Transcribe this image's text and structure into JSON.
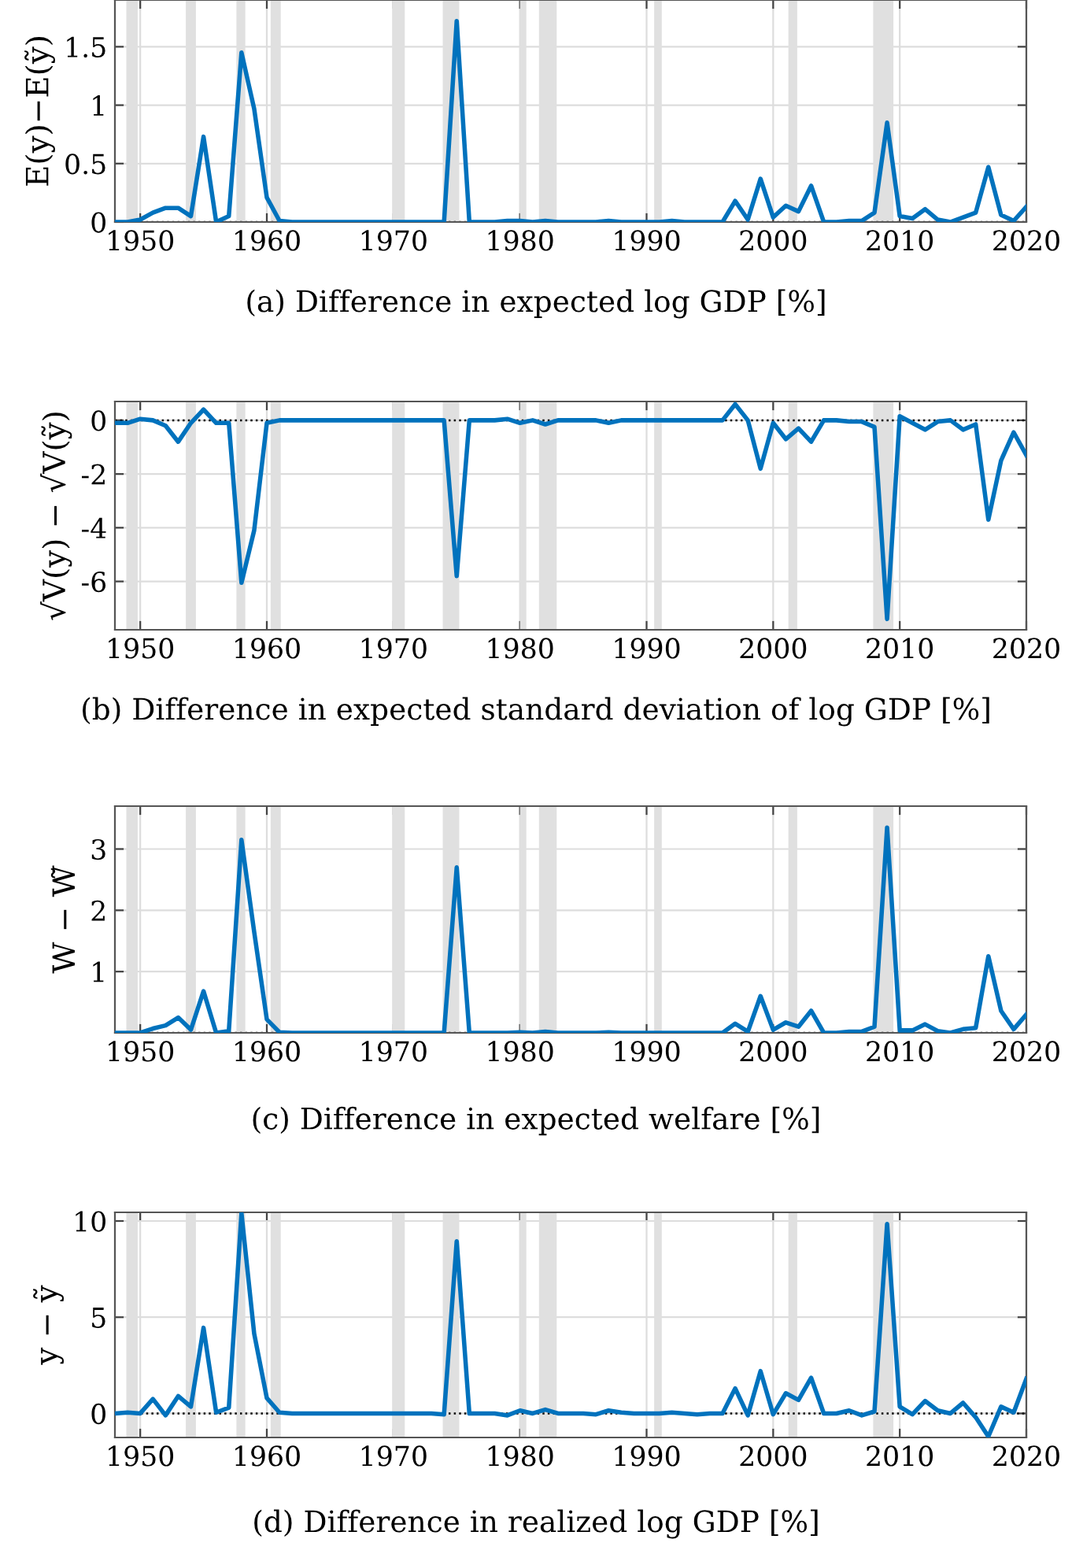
{
  "chart_data": [
    {
      "type": "line",
      "title": "(a) Difference in expected log GDP [%]",
      "ylabel": "E(y)−E(ỹ)",
      "x": [
        1948,
        1949,
        1950,
        1951,
        1952,
        1953,
        1954,
        1955,
        1956,
        1957,
        1958,
        1959,
        1960,
        1961,
        1962,
        1963,
        1964,
        1965,
        1966,
        1967,
        1968,
        1969,
        1970,
        1971,
        1972,
        1973,
        1974,
        1975,
        1976,
        1977,
        1978,
        1979,
        1980,
        1981,
        1982,
        1983,
        1984,
        1985,
        1986,
        1987,
        1988,
        1989,
        1990,
        1991,
        1992,
        1993,
        1994,
        1995,
        1996,
        1997,
        1998,
        1999,
        2000,
        2001,
        2002,
        2003,
        2004,
        2005,
        2006,
        2007,
        2008,
        2009,
        2010,
        2011,
        2012,
        2013,
        2014,
        2015,
        2016,
        2017,
        2018,
        2019,
        2020
      ],
      "series": [
        {
          "color": "#0072bd",
          "values": [
            0,
            0,
            0.02,
            0.08,
            0.12,
            0.12,
            0.05,
            0.73,
            0,
            0.05,
            1.45,
            0.97,
            0.21,
            0.01,
            0,
            0,
            0,
            0,
            0,
            0,
            0,
            0,
            0,
            0,
            0,
            0,
            0,
            1.72,
            0,
            0,
            0,
            0.01,
            0.01,
            0,
            0.01,
            0,
            0,
            0,
            0,
            0.01,
            0,
            0,
            0,
            0,
            0.01,
            0,
            0,
            0,
            0,
            0.18,
            0.02,
            0.37,
            0.04,
            0.14,
            0.09,
            0.31,
            0,
            0,
            0.01,
            0.01,
            0.08,
            0.85,
            0.05,
            0.03,
            0.11,
            0.02,
            0,
            0.04,
            0.08,
            0.47,
            0.06,
            0.01,
            0.13
          ]
        }
      ],
      "xlim": [
        1948,
        2020
      ],
      "ylim": [
        0,
        1.9
      ],
      "xticks": [
        1950,
        1960,
        1970,
        1980,
        1990,
        2000,
        2010,
        2020
      ],
      "yticks": [
        0,
        0.5,
        1,
        1.5
      ],
      "grid": true,
      "bands": [
        {
          "axis": "x",
          "from": 1948.9,
          "to": 1949.8,
          "color": "#e0e0e0"
        },
        {
          "axis": "x",
          "from": 1953.6,
          "to": 1954.4,
          "color": "#e0e0e0"
        },
        {
          "axis": "x",
          "from": 1957.6,
          "to": 1958.3,
          "color": "#e0e0e0"
        },
        {
          "axis": "x",
          "from": 1960.3,
          "to": 1961.1,
          "color": "#e0e0e0"
        },
        {
          "axis": "x",
          "from": 1969.9,
          "to": 1970.9,
          "color": "#e0e0e0"
        },
        {
          "axis": "x",
          "from": 1973.9,
          "to": 1975.2,
          "color": "#e0e0e0"
        },
        {
          "axis": "x",
          "from": 1980.0,
          "to": 1980.5,
          "color": "#e0e0e0"
        },
        {
          "axis": "x",
          "from": 1981.5,
          "to": 1982.9,
          "color": "#e0e0e0"
        },
        {
          "axis": "x",
          "from": 1990.6,
          "to": 1991.2,
          "color": "#e0e0e0"
        },
        {
          "axis": "x",
          "from": 2001.2,
          "to": 2001.9,
          "color": "#e0e0e0"
        },
        {
          "axis": "x",
          "from": 2007.9,
          "to": 2009.5,
          "color": "#e0e0e0"
        }
      ],
      "ref_lines": [
        {
          "axis": "y",
          "value": 0,
          "color": "#000000",
          "line_style": "dotted"
        }
      ]
    },
    {
      "type": "line",
      "title": "(b) Difference in expected standard deviation of log GDP [%]",
      "ylabel": "√V(y) − √V(ỹ)",
      "x": [
        1948,
        1949,
        1950,
        1951,
        1952,
        1953,
        1954,
        1955,
        1956,
        1957,
        1958,
        1959,
        1960,
        1961,
        1962,
        1963,
        1964,
        1965,
        1966,
        1967,
        1968,
        1969,
        1970,
        1971,
        1972,
        1973,
        1974,
        1975,
        1976,
        1977,
        1978,
        1979,
        1980,
        1981,
        1982,
        1983,
        1984,
        1985,
        1986,
        1987,
        1988,
        1989,
        1990,
        1991,
        1992,
        1993,
        1994,
        1995,
        1996,
        1997,
        1998,
        1999,
        2000,
        2001,
        2002,
        2003,
        2004,
        2005,
        2006,
        2007,
        2008,
        2009,
        2010,
        2011,
        2012,
        2013,
        2014,
        2015,
        2016,
        2017,
        2018,
        2019,
        2020
      ],
      "series": [
        {
          "color": "#0072bd",
          "values": [
            -0.1,
            -0.1,
            0.05,
            0,
            -0.2,
            -0.8,
            -0.1,
            0.4,
            -0.1,
            -0.1,
            -6.05,
            -4.1,
            -0.1,
            0,
            0,
            0,
            0,
            0,
            0,
            0,
            0,
            0,
            0,
            0,
            0,
            0,
            0,
            -5.8,
            0,
            0,
            0,
            0.05,
            -0.1,
            0,
            -0.15,
            0,
            0,
            0,
            0,
            -0.1,
            0,
            0,
            0,
            0,
            0,
            0,
            0,
            0,
            0,
            0.6,
            0,
            -1.8,
            -0.1,
            -0.7,
            -0.3,
            -0.8,
            0,
            0,
            -0.05,
            -0.05,
            -0.25,
            -7.4,
            0.15,
            -0.1,
            -0.35,
            -0.05,
            0,
            -0.35,
            -0.15,
            -3.7,
            -1.5,
            -0.45,
            -1.3
          ]
        }
      ],
      "xlim": [
        1948,
        2020
      ],
      "ylim": [
        -7.8,
        0.7
      ],
      "xticks": [
        1950,
        1960,
        1970,
        1980,
        1990,
        2000,
        2010,
        2020
      ],
      "yticks": [
        {
          "value": -6,
          "label": "-6"
        },
        {
          "value": -4,
          "label": "-4"
        },
        {
          "value": -2,
          "label": "-2"
        },
        0
      ],
      "grid": true,
      "bands": [
        {
          "axis": "x",
          "from": 1948.9,
          "to": 1949.8,
          "color": "#e0e0e0"
        },
        {
          "axis": "x",
          "from": 1953.6,
          "to": 1954.4,
          "color": "#e0e0e0"
        },
        {
          "axis": "x",
          "from": 1957.6,
          "to": 1958.3,
          "color": "#e0e0e0"
        },
        {
          "axis": "x",
          "from": 1960.3,
          "to": 1961.1,
          "color": "#e0e0e0"
        },
        {
          "axis": "x",
          "from": 1969.9,
          "to": 1970.9,
          "color": "#e0e0e0"
        },
        {
          "axis": "x",
          "from": 1973.9,
          "to": 1975.2,
          "color": "#e0e0e0"
        },
        {
          "axis": "x",
          "from": 1980.0,
          "to": 1980.5,
          "color": "#e0e0e0"
        },
        {
          "axis": "x",
          "from": 1981.5,
          "to": 1982.9,
          "color": "#e0e0e0"
        },
        {
          "axis": "x",
          "from": 1990.6,
          "to": 1991.2,
          "color": "#e0e0e0"
        },
        {
          "axis": "x",
          "from": 2001.2,
          "to": 2001.9,
          "color": "#e0e0e0"
        },
        {
          "axis": "x",
          "from": 2007.9,
          "to": 2009.5,
          "color": "#e0e0e0"
        }
      ],
      "ref_lines": [
        {
          "axis": "y",
          "value": 0,
          "color": "#000000",
          "line_style": "dotted"
        }
      ]
    },
    {
      "type": "line",
      "title": "(c) Difference in expected welfare [%]",
      "ylabel": "W − W̃",
      "x": [
        1948,
        1949,
        1950,
        1951,
        1952,
        1953,
        1954,
        1955,
        1956,
        1957,
        1958,
        1959,
        1960,
        1961,
        1962,
        1963,
        1964,
        1965,
        1966,
        1967,
        1968,
        1969,
        1970,
        1971,
        1972,
        1973,
        1974,
        1975,
        1976,
        1977,
        1978,
        1979,
        1980,
        1981,
        1982,
        1983,
        1984,
        1985,
        1986,
        1987,
        1988,
        1989,
        1990,
        1991,
        1992,
        1993,
        1994,
        1995,
        1996,
        1997,
        1998,
        1999,
        2000,
        2001,
        2002,
        2003,
        2004,
        2005,
        2006,
        2007,
        2008,
        2009,
        2010,
        2011,
        2012,
        2013,
        2014,
        2015,
        2016,
        2017,
        2018,
        2019,
        2020
      ],
      "series": [
        {
          "color": "#0072bd",
          "values": [
            0,
            0,
            0,
            0.07,
            0.12,
            0.25,
            0.05,
            0.68,
            0,
            0.03,
            3.15,
            1.65,
            0.22,
            0.01,
            0,
            0,
            0,
            0,
            0,
            0,
            0,
            0,
            0,
            0,
            0,
            0,
            0,
            2.7,
            0,
            0,
            0,
            0,
            0.01,
            0,
            0.02,
            0,
            0,
            0,
            0,
            0.01,
            0,
            0,
            0,
            0,
            0,
            0,
            0,
            0,
            0,
            0.15,
            0.02,
            0.6,
            0.05,
            0.17,
            0.1,
            0.36,
            0,
            0,
            0.02,
            0.02,
            0.1,
            3.35,
            0.04,
            0.04,
            0.14,
            0.03,
            0,
            0.06,
            0.08,
            1.25,
            0.36,
            0.06,
            0.3
          ]
        }
      ],
      "xlim": [
        1948,
        2020
      ],
      "ylim": [
        0,
        3.7
      ],
      "xticks": [
        1950,
        1960,
        1970,
        1980,
        1990,
        2000,
        2010,
        2020
      ],
      "yticks": [
        1,
        2,
        3
      ],
      "grid": true,
      "bands": [
        {
          "axis": "x",
          "from": 1948.9,
          "to": 1949.8,
          "color": "#e0e0e0"
        },
        {
          "axis": "x",
          "from": 1953.6,
          "to": 1954.4,
          "color": "#e0e0e0"
        },
        {
          "axis": "x",
          "from": 1957.6,
          "to": 1958.3,
          "color": "#e0e0e0"
        },
        {
          "axis": "x",
          "from": 1960.3,
          "to": 1961.1,
          "color": "#e0e0e0"
        },
        {
          "axis": "x",
          "from": 1969.9,
          "to": 1970.9,
          "color": "#e0e0e0"
        },
        {
          "axis": "x",
          "from": 1973.9,
          "to": 1975.2,
          "color": "#e0e0e0"
        },
        {
          "axis": "x",
          "from": 1980.0,
          "to": 1980.5,
          "color": "#e0e0e0"
        },
        {
          "axis": "x",
          "from": 1981.5,
          "to": 1982.9,
          "color": "#e0e0e0"
        },
        {
          "axis": "x",
          "from": 1990.6,
          "to": 1991.2,
          "color": "#e0e0e0"
        },
        {
          "axis": "x",
          "from": 2001.2,
          "to": 2001.9,
          "color": "#e0e0e0"
        },
        {
          "axis": "x",
          "from": 2007.9,
          "to": 2009.5,
          "color": "#e0e0e0"
        }
      ],
      "ref_lines": [
        {
          "axis": "y",
          "value": 0,
          "color": "#000000",
          "line_style": "dotted"
        }
      ]
    },
    {
      "type": "line",
      "title": "(d) Difference in realized log GDP [%]",
      "ylabel": "y − ỹ",
      "x": [
        1948,
        1949,
        1950,
        1951,
        1952,
        1953,
        1954,
        1955,
        1956,
        1957,
        1958,
        1959,
        1960,
        1961,
        1962,
        1963,
        1964,
        1965,
        1966,
        1967,
        1968,
        1969,
        1970,
        1971,
        1972,
        1973,
        1974,
        1975,
        1976,
        1977,
        1978,
        1979,
        1980,
        1981,
        1982,
        1983,
        1984,
        1985,
        1986,
        1987,
        1988,
        1989,
        1990,
        1991,
        1992,
        1993,
        1994,
        1995,
        1996,
        1997,
        1998,
        1999,
        2000,
        2001,
        2002,
        2003,
        2004,
        2005,
        2006,
        2007,
        2008,
        2009,
        2010,
        2011,
        2012,
        2013,
        2014,
        2015,
        2016,
        2017,
        2018,
        2019,
        2020
      ],
      "series": [
        {
          "color": "#0072bd",
          "values": [
            0,
            0.05,
            0,
            0.75,
            -0.1,
            0.9,
            0.35,
            4.45,
            0.05,
            0.3,
            10.4,
            4.15,
            0.8,
            0.05,
            0,
            0,
            0,
            0,
            0,
            0,
            0,
            0,
            0,
            0,
            0,
            0,
            -0.05,
            8.95,
            0,
            0,
            0,
            -0.1,
            0.15,
            0,
            0.2,
            0,
            0,
            0,
            -0.05,
            0.15,
            0.05,
            0,
            0,
            0,
            0.05,
            0,
            -0.05,
            0,
            0,
            1.3,
            -0.1,
            2.2,
            -0.05,
            1.05,
            0.7,
            1.85,
            0,
            0,
            0.15,
            -0.1,
            0.1,
            9.85,
            0.35,
            -0.05,
            0.65,
            0.15,
            0,
            0.55,
            -0.2,
            -1.2,
            0.35,
            0.05,
            1.8
          ]
        }
      ],
      "xlim": [
        1948,
        2020
      ],
      "ylim": [
        -1.25,
        10.45
      ],
      "xticks": [
        1950,
        1960,
        1970,
        1980,
        1990,
        2000,
        2010,
        2020
      ],
      "yticks": [
        0,
        5,
        10
      ],
      "grid": true,
      "bands": [
        {
          "axis": "x",
          "from": 1948.9,
          "to": 1949.8,
          "color": "#e0e0e0"
        },
        {
          "axis": "x",
          "from": 1953.6,
          "to": 1954.4,
          "color": "#e0e0e0"
        },
        {
          "axis": "x",
          "from": 1957.6,
          "to": 1958.3,
          "color": "#e0e0e0"
        },
        {
          "axis": "x",
          "from": 1960.3,
          "to": 1961.1,
          "color": "#e0e0e0"
        },
        {
          "axis": "x",
          "from": 1969.9,
          "to": 1970.9,
          "color": "#e0e0e0"
        },
        {
          "axis": "x",
          "from": 1973.9,
          "to": 1975.2,
          "color": "#e0e0e0"
        },
        {
          "axis": "x",
          "from": 1980.0,
          "to": 1980.5,
          "color": "#e0e0e0"
        },
        {
          "axis": "x",
          "from": 1981.5,
          "to": 1982.9,
          "color": "#e0e0e0"
        },
        {
          "axis": "x",
          "from": 1990.6,
          "to": 1991.2,
          "color": "#e0e0e0"
        },
        {
          "axis": "x",
          "from": 2001.2,
          "to": 2001.9,
          "color": "#e0e0e0"
        },
        {
          "axis": "x",
          "from": 2007.9,
          "to": 2009.5,
          "color": "#e0e0e0"
        }
      ],
      "ref_lines": [
        {
          "axis": "y",
          "value": 0,
          "color": "#000000",
          "line_style": "dotted"
        }
      ]
    }
  ]
}
